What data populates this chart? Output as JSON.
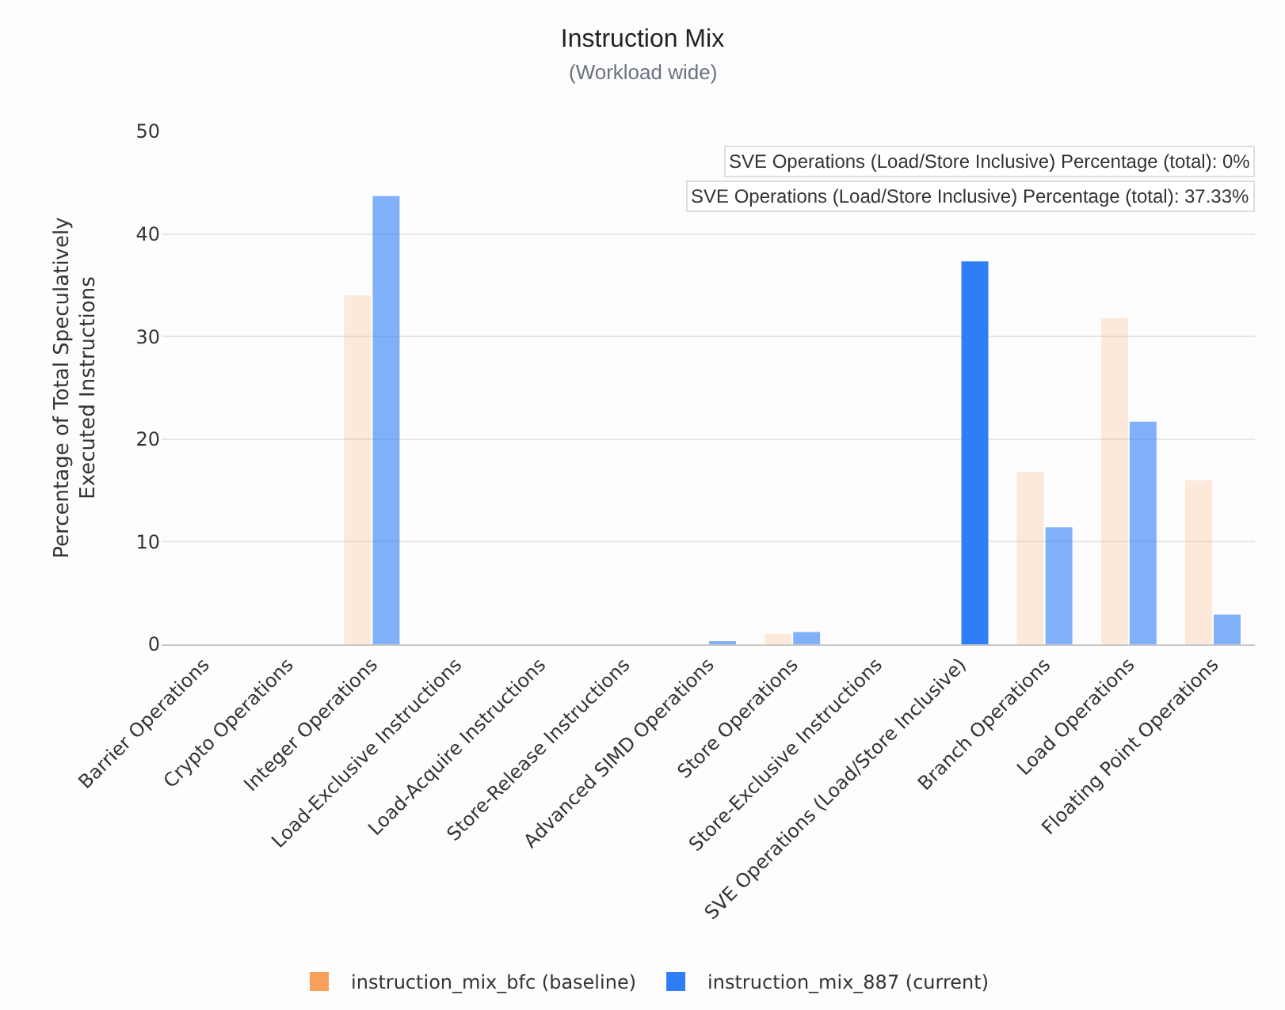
{
  "chart_data": {
    "type": "bar",
    "title": "Instruction Mix",
    "subtitle": "(Workload wide)",
    "ylabel": "Percentage of Total Speculatively\nExecuted Instructions",
    "categories": [
      "Barrier Operations",
      "Crypto Operations",
      "Integer Operations",
      "Load-Exclusive Instructions",
      "Load-Acquire Instructions",
      "Store-Release Instructions",
      "Advanced SIMD Operations",
      "Store Operations",
      "Store-Exclusive Instructions",
      "SVE Operations (Load/Store Inclusive)",
      "Branch Operations",
      "Load Operations",
      "Floating Point Operations"
    ],
    "series": [
      {
        "name": "instruction_mix_bfc (baseline)",
        "color": "#f9a05a",
        "colors": [
          "#fbe9da",
          "#fbe9da",
          "#fbe9da",
          "#fbe9da",
          "#fbe9da",
          "#fbe9da",
          "#fbe9da",
          "#fbe9da",
          "#fbe9da",
          "#f9a05a",
          "#fbe9da",
          "#fbe9da",
          "#fbe9da"
        ],
        "values": [
          0,
          0,
          34.0,
          0,
          0,
          0,
          0,
          1.0,
          0,
          0,
          16.8,
          31.8,
          16.0
        ]
      },
      {
        "name": "instruction_mix_887 (current)",
        "color": "#2e7ff7",
        "colors": [
          "#81aef5",
          "#81aef5",
          "#81aef5",
          "#81aef5",
          "#81aef5",
          "#81aef5",
          "#81aef5",
          "#81aef5",
          "#81aef5",
          "#2e7ff7",
          "#81aef5",
          "#81aef5",
          "#81aef5"
        ],
        "values": [
          0,
          0,
          43.7,
          0,
          0,
          0,
          0.2,
          1.2,
          0,
          37.33,
          11.4,
          21.7,
          2.9
        ]
      }
    ],
    "ylim": [
      0,
      50
    ],
    "yticks": [
      0,
      10,
      20,
      30,
      40,
      50
    ],
    "grid": "y",
    "legend": "bottom",
    "annotations": [
      "SVE Operations (Load/Store Inclusive) Percentage (total): 0%",
      "SVE Operations (Load/Store Inclusive) Percentage (total): 37.33%"
    ]
  }
}
